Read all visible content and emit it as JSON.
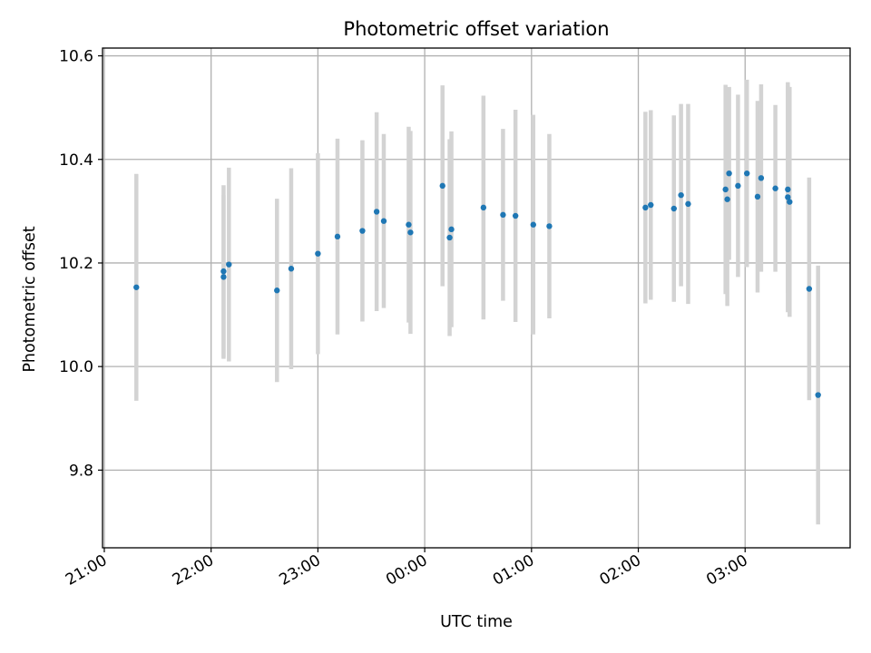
{
  "chart_data": {
    "type": "scatter",
    "title": "Photometric offset variation",
    "xlabel": "UTC time",
    "ylabel": "Photometric offset",
    "x_unit": "UTC hh:mm (times after midnight are next day)",
    "xlim": [
      "20:59",
      "03:59"
    ],
    "ylim": [
      9.65,
      10.615
    ],
    "xticks": [
      "21:00",
      "22:00",
      "23:00",
      "00:00",
      "01:00",
      "02:00",
      "03:00"
    ],
    "yticks": [
      9.8,
      10.0,
      10.2,
      10.4,
      10.6
    ],
    "grid": true,
    "marker_color": "#1f77b4",
    "errorbar_color": "#d3d3d3",
    "points": [
      {
        "time": "21:18",
        "value": 10.153,
        "err": 0.219
      },
      {
        "time": "22:07",
        "value": 10.184,
        "err": 0.166
      },
      {
        "time": "22:07",
        "value": 10.173,
        "err": 0.158
      },
      {
        "time": "22:10",
        "value": 10.197,
        "err": 0.187
      },
      {
        "time": "22:37",
        "value": 10.147,
        "err": 0.177
      },
      {
        "time": "22:45",
        "value": 10.189,
        "err": 0.194
      },
      {
        "time": "23:00",
        "value": 10.218,
        "err": 0.194
      },
      {
        "time": "23:11",
        "value": 10.251,
        "err": 0.189
      },
      {
        "time": "23:25",
        "value": 10.262,
        "err": 0.175
      },
      {
        "time": "23:33",
        "value": 10.299,
        "err": 0.192
      },
      {
        "time": "23:37",
        "value": 10.281,
        "err": 0.168
      },
      {
        "time": "23:51",
        "value": 10.274,
        "err": 0.189
      },
      {
        "time": "23:52",
        "value": 10.259,
        "err": 0.196
      },
      {
        "time": "00:10",
        "value": 10.349,
        "err": 0.194
      },
      {
        "time": "00:14",
        "value": 10.249,
        "err": 0.19
      },
      {
        "time": "00:15",
        "value": 10.265,
        "err": 0.189
      },
      {
        "time": "00:33",
        "value": 10.307,
        "err": 0.216
      },
      {
        "time": "00:44",
        "value": 10.293,
        "err": 0.166
      },
      {
        "time": "00:51",
        "value": 10.291,
        "err": 0.205
      },
      {
        "time": "01:01",
        "value": 10.274,
        "err": 0.212
      },
      {
        "time": "01:10",
        "value": 10.271,
        "err": 0.178
      },
      {
        "time": "02:04",
        "value": 10.307,
        "err": 0.185
      },
      {
        "time": "02:07",
        "value": 10.312,
        "err": 0.183
      },
      {
        "time": "02:20",
        "value": 10.305,
        "err": 0.18
      },
      {
        "time": "02:24",
        "value": 10.331,
        "err": 0.176
      },
      {
        "time": "02:28",
        "value": 10.314,
        "err": 0.193
      },
      {
        "time": "02:49",
        "value": 10.342,
        "err": 0.202
      },
      {
        "time": "02:50",
        "value": 10.323,
        "err": 0.206
      },
      {
        "time": "02:51",
        "value": 10.373,
        "err": 0.167
      },
      {
        "time": "02:56",
        "value": 10.349,
        "err": 0.176
      },
      {
        "time": "03:01",
        "value": 10.373,
        "err": 0.181
      },
      {
        "time": "03:07",
        "value": 10.328,
        "err": 0.185
      },
      {
        "time": "03:09",
        "value": 10.364,
        "err": 0.181
      },
      {
        "time": "03:17",
        "value": 10.344,
        "err": 0.161
      },
      {
        "time": "03:24",
        "value": 10.327,
        "err": 0.222
      },
      {
        "time": "03:24",
        "value": 10.342,
        "err": 0.2
      },
      {
        "time": "03:25",
        "value": 10.318,
        "err": 0.222
      },
      {
        "time": "03:36",
        "value": 10.15,
        "err": 0.215
      },
      {
        "time": "03:41",
        "value": 9.945,
        "err": 0.25
      }
    ]
  }
}
